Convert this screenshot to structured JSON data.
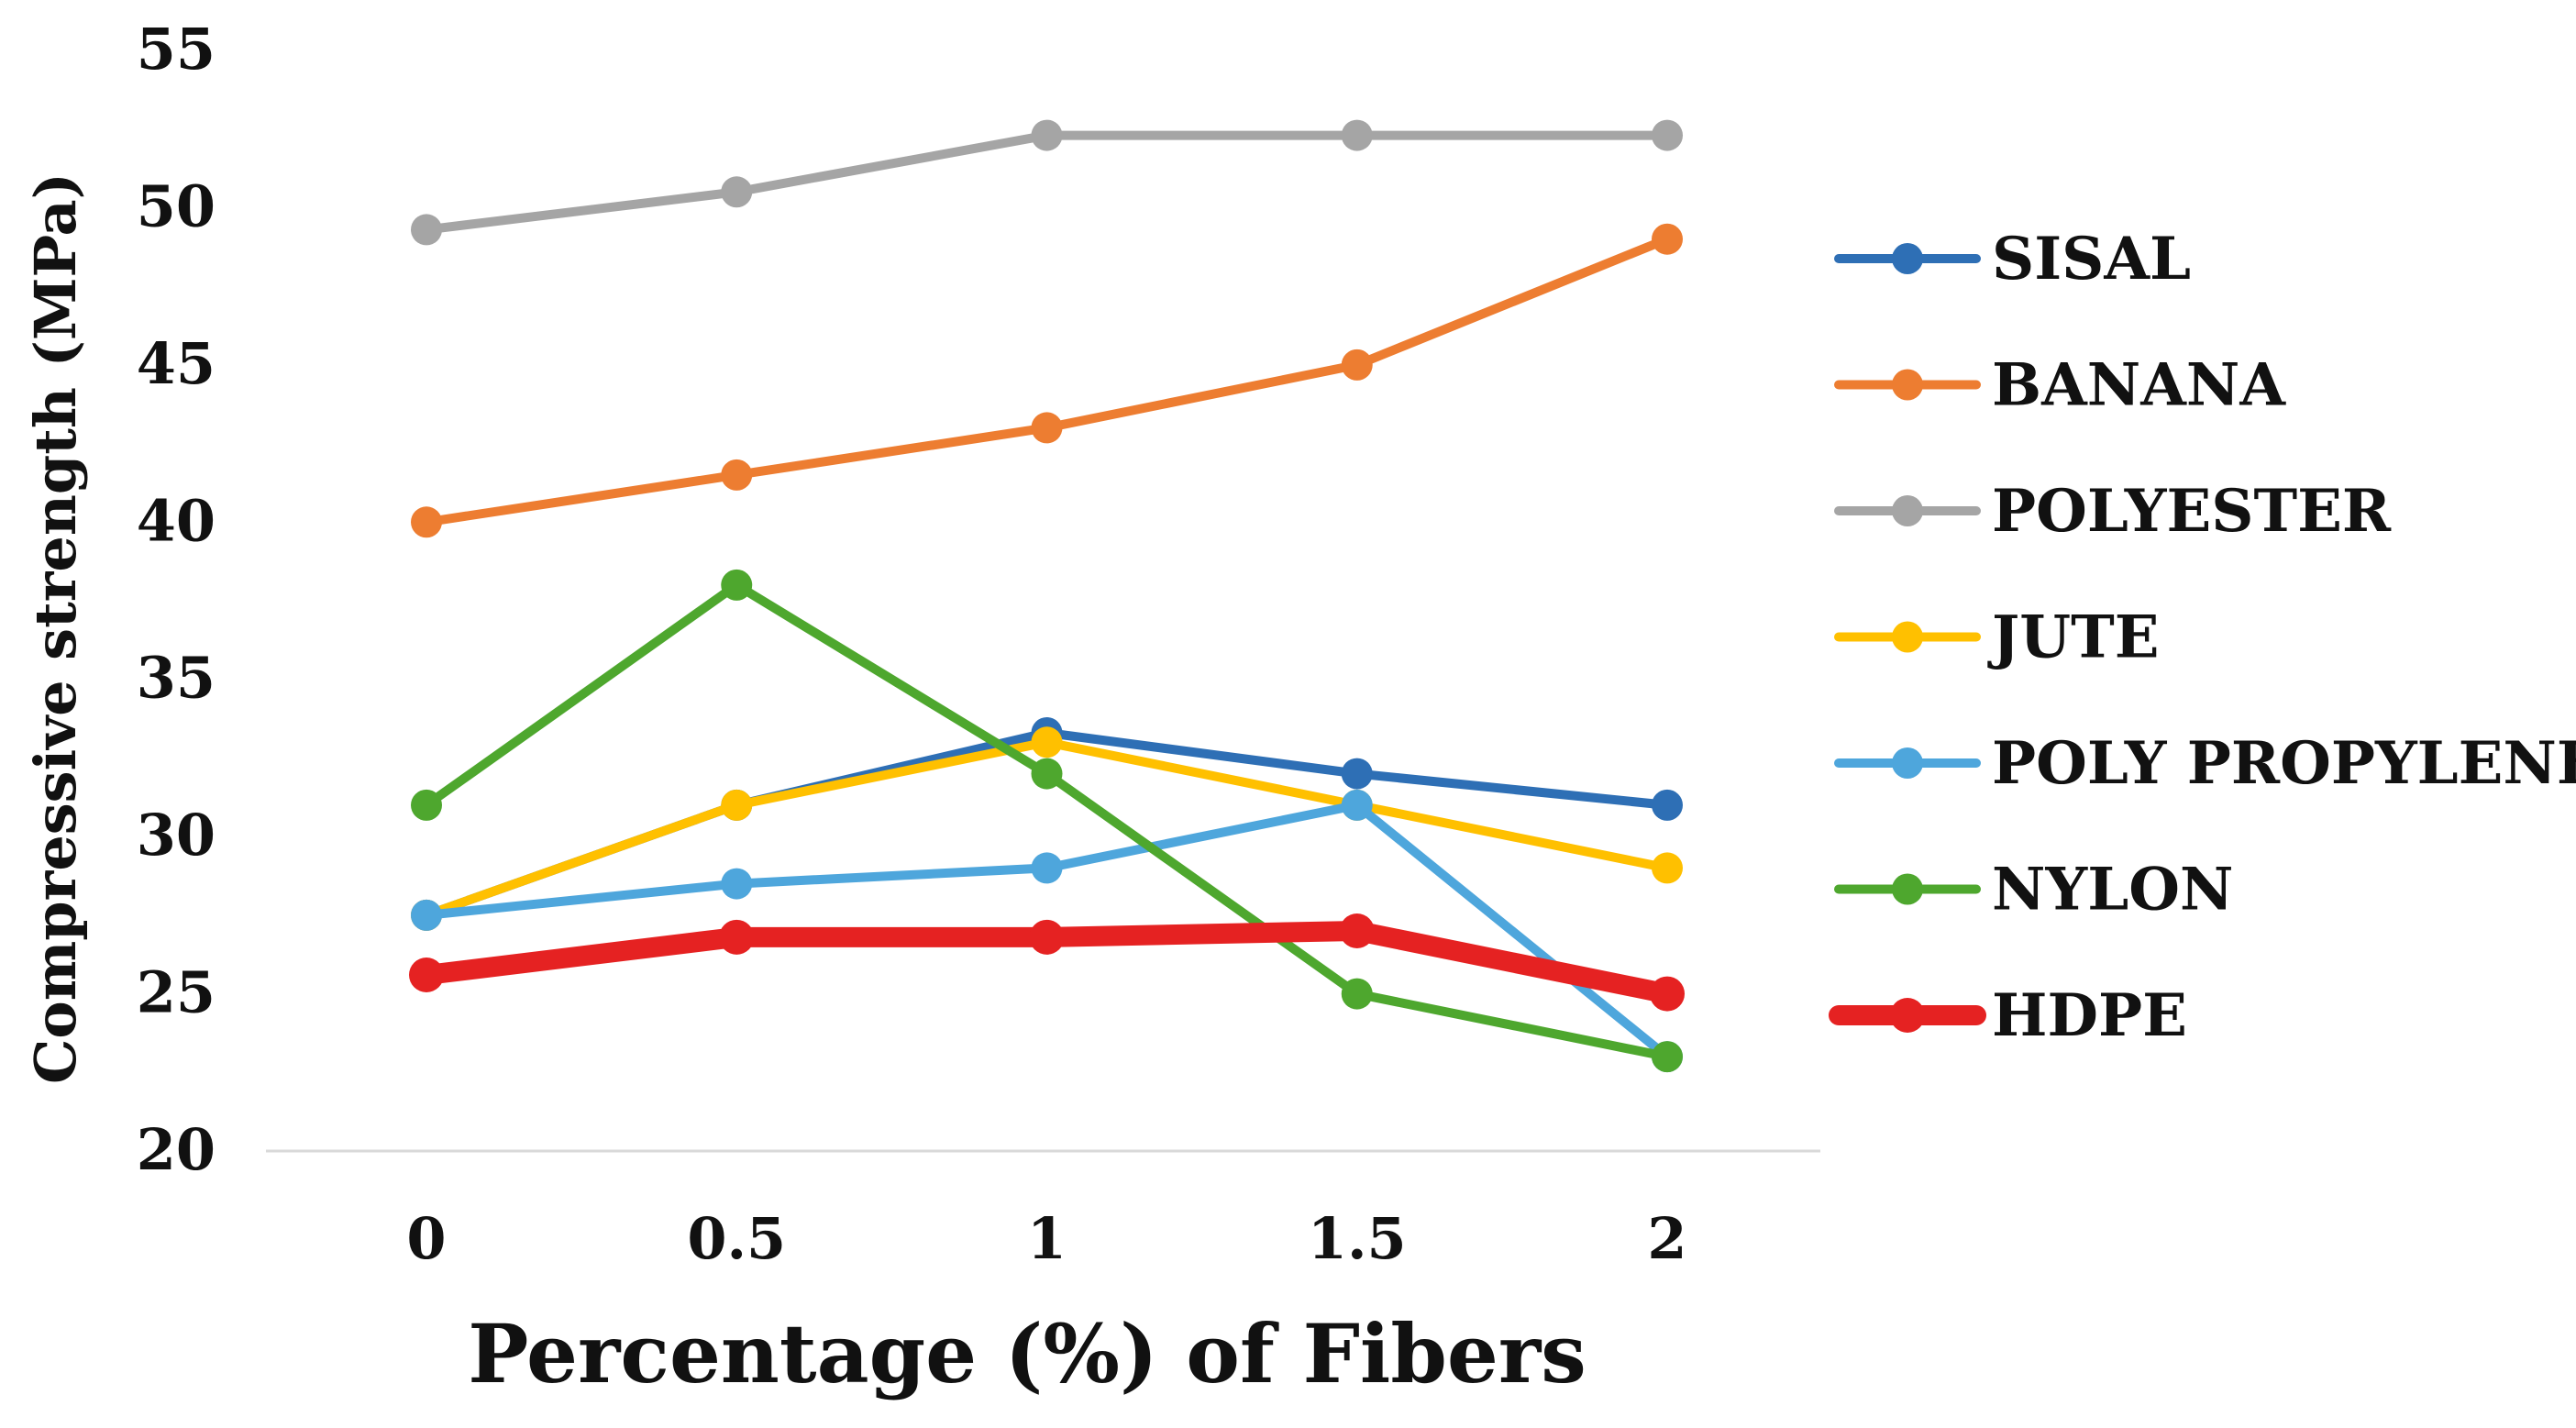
{
  "chart_data": {
    "type": "line",
    "title": "",
    "xlabel": "Percentage (%) of Fibers",
    "ylabel": "Compressive strength (MPa)",
    "x": [
      0,
      0.5,
      1,
      1.5,
      2
    ],
    "x_tick_labels": [
      "0",
      "0.5",
      "1",
      "1.5",
      "2"
    ],
    "y_ticks": [
      20,
      25,
      30,
      35,
      40,
      45,
      50,
      55
    ],
    "y_tick_labels": [
      "20",
      "25",
      "30",
      "35",
      "40",
      "45",
      "50",
      "55"
    ],
    "ylim": [
      20,
      55
    ],
    "grid": false,
    "legend_position": "right",
    "series": [
      {
        "name": "SISAL",
        "color": "#2e6fb5",
        "values": [
          27.5,
          31,
          33.3,
          32,
          31
        ]
      },
      {
        "name": "BANANA",
        "color": "#ed7d31",
        "values": [
          40,
          41.5,
          43,
          45,
          49
        ]
      },
      {
        "name": "POLYESTER",
        "color": "#a5a5a5",
        "values": [
          49.3,
          50.5,
          52.3,
          52.3,
          52.3
        ]
      },
      {
        "name": "JUTE",
        "color": "#ffc000",
        "values": [
          27.5,
          31,
          33,
          31,
          29
        ]
      },
      {
        "name": "POLY PROPYLENE",
        "color": "#4ea6dc",
        "values": [
          27.5,
          28.5,
          29,
          31,
          23
        ]
      },
      {
        "name": "NYLON",
        "color": "#4ea72e",
        "values": [
          31,
          38,
          32,
          25,
          23
        ]
      },
      {
        "name": "HDPE",
        "color": "#e52222",
        "values": [
          25.6,
          26.8,
          26.8,
          27,
          25
        ]
      }
    ]
  }
}
